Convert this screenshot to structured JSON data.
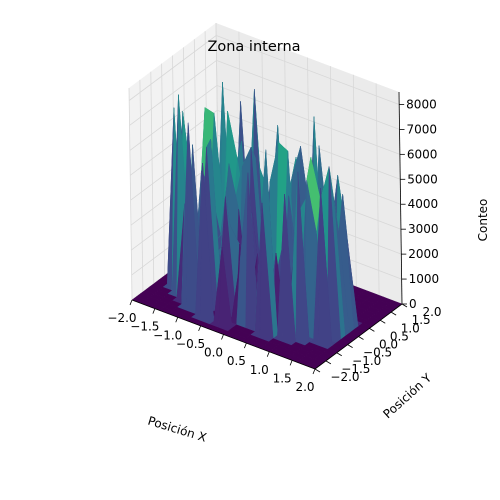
{
  "chart_data": {
    "type": "surface3d",
    "title": "Zona interna",
    "xlabel": "Posición X",
    "ylabel": "Posición Y",
    "zlabel": "Conteo",
    "xlim": [
      -2.0,
      2.0
    ],
    "ylim": [
      -2.0,
      2.0
    ],
    "zlim": [
      0,
      8500
    ],
    "x_ticks": [
      "−2.0",
      "−1.5",
      "−1.0",
      "−0.5",
      "0.0",
      "0.5",
      "1.0",
      "1.5",
      "2.0"
    ],
    "y_ticks": [
      "−2.0",
      "−1.5",
      "−1.0",
      "−0.5",
      "0.0",
      "0.5",
      "1.0",
      "1.5",
      "2.0"
    ],
    "z_ticks": [
      "0",
      "1000",
      "2000",
      "3000",
      "4000",
      "5000",
      "6000",
      "7000",
      "8000"
    ],
    "colormap": "viridis",
    "grid": true,
    "surface": {
      "x": [
        -2.0,
        -1.8,
        -1.6,
        -1.4,
        -1.2,
        -1.0,
        -0.8,
        -0.6,
        -0.4,
        -0.2,
        0.0,
        0.2,
        0.4,
        0.6,
        0.8,
        1.0,
        1.2,
        1.4,
        1.6,
        1.8,
        2.0
      ],
      "y": [
        -2.0,
        -1.8,
        -1.6,
        -1.4,
        -1.2,
        -1.0,
        -0.8,
        -0.6,
        -0.4,
        -0.2,
        0.0,
        0.2,
        0.4,
        0.6,
        0.8,
        1.0,
        1.2,
        1.4,
        1.6,
        1.8,
        2.0
      ],
      "z": [
        [
          0,
          0,
          0,
          0,
          0,
          0,
          0,
          0,
          0,
          0,
          0,
          0,
          0,
          0,
          0,
          0,
          0,
          0,
          0,
          0,
          0
        ],
        [
          0,
          0,
          0,
          0,
          0,
          0,
          0,
          0,
          0,
          0,
          0,
          0,
          0,
          0,
          0,
          0,
          0,
          0,
          0,
          0,
          0
        ],
        [
          0,
          0,
          0,
          0,
          0,
          0,
          0,
          6200,
          0,
          3100,
          0,
          0,
          0,
          0,
          0,
          0,
          0,
          0,
          0,
          0,
          0
        ],
        [
          0,
          0,
          0,
          0,
          0,
          7400,
          0,
          0,
          0,
          0,
          0,
          0,
          0,
          5300,
          0,
          0,
          0,
          0,
          0,
          0,
          0
        ],
        [
          0,
          0,
          0,
          0,
          3900,
          0,
          0,
          0,
          0,
          0,
          2400,
          6100,
          0,
          7300,
          0,
          5800,
          0,
          0,
          0,
          0,
          0
        ],
        [
          0,
          0,
          0,
          8000,
          2400,
          0,
          6300,
          0,
          4600,
          0,
          0,
          0,
          3500,
          0,
          0,
          1000,
          6700,
          0,
          0,
          0,
          0
        ],
        [
          0,
          0,
          7200,
          0,
          6000,
          0,
          6500,
          0,
          3300,
          2700,
          0,
          0,
          0,
          2900,
          0,
          3300,
          0,
          0,
          6200,
          0,
          0
        ],
        [
          0,
          0,
          0,
          6200,
          0,
          2300,
          1800,
          1700,
          0,
          0,
          0,
          1400,
          1900,
          0,
          5200,
          0,
          6100,
          4100,
          0,
          0,
          0
        ],
        [
          0,
          0,
          6800,
          3400,
          0,
          1500,
          1900,
          5400,
          3700,
          0,
          2200,
          0,
          1600,
          3300,
          3700,
          0,
          6900,
          5300,
          6800,
          0,
          0
        ],
        [
          0,
          0,
          5100,
          0,
          0,
          1900,
          2400,
          3200,
          1400,
          3600,
          0,
          5100,
          6800,
          6600,
          0,
          4900,
          1000,
          4600,
          5300,
          0,
          0
        ],
        [
          0,
          0,
          0,
          4300,
          3700,
          2000,
          4700,
          0,
          0,
          0,
          0,
          1800,
          1900,
          2300,
          3800,
          6000,
          4300,
          5500,
          3900,
          0,
          0
        ],
        [
          0,
          0,
          0,
          6700,
          6600,
          2300,
          3100,
          4900,
          5800,
          0,
          0,
          0,
          0,
          3800,
          4600,
          1400,
          0,
          0,
          5300,
          0,
          0
        ],
        [
          0,
          0,
          0,
          5800,
          0,
          6700,
          4900,
          2700,
          5200,
          0,
          1600,
          5200,
          2600,
          1100,
          0,
          6700,
          2900,
          5800,
          3200,
          0,
          0
        ],
        [
          0,
          0,
          0,
          0,
          7600,
          0,
          5500,
          0,
          0,
          2400,
          6700,
          0,
          0,
          0,
          7600,
          0,
          0,
          0,
          0,
          0,
          0
        ],
        [
          0,
          0,
          0,
          0,
          2900,
          0,
          1100,
          7600,
          0,
          1000,
          3200,
          4600,
          6000,
          3200,
          2100,
          0,
          0,
          0,
          0,
          0,
          0
        ],
        [
          0,
          0,
          0,
          0,
          0,
          6700,
          0,
          4300,
          3400,
          2200,
          0,
          5300,
          0,
          0,
          3400,
          0,
          0,
          0,
          0,
          0,
          0
        ],
        [
          0,
          0,
          0,
          0,
          0,
          0,
          5700,
          0,
          0,
          0,
          3900,
          3800,
          0,
          0,
          0,
          0,
          0,
          0,
          0,
          0,
          0
        ],
        [
          0,
          0,
          0,
          0,
          0,
          0,
          0,
          0,
          0,
          0,
          0,
          0,
          0,
          0,
          0,
          0,
          0,
          0,
          0,
          0,
          0
        ],
        [
          0,
          0,
          0,
          0,
          0,
          0,
          0,
          0,
          0,
          0,
          0,
          0,
          0,
          0,
          0,
          0,
          0,
          0,
          0,
          0,
          0
        ],
        [
          0,
          0,
          0,
          0,
          0,
          0,
          0,
          0,
          0,
          0,
          0,
          0,
          0,
          0,
          0,
          0,
          0,
          0,
          0,
          0,
          0
        ],
        [
          0,
          0,
          0,
          0,
          0,
          0,
          0,
          0,
          0,
          0,
          0,
          0,
          0,
          0,
          0,
          0,
          0,
          0,
          0,
          0,
          0
        ]
      ]
    }
  }
}
